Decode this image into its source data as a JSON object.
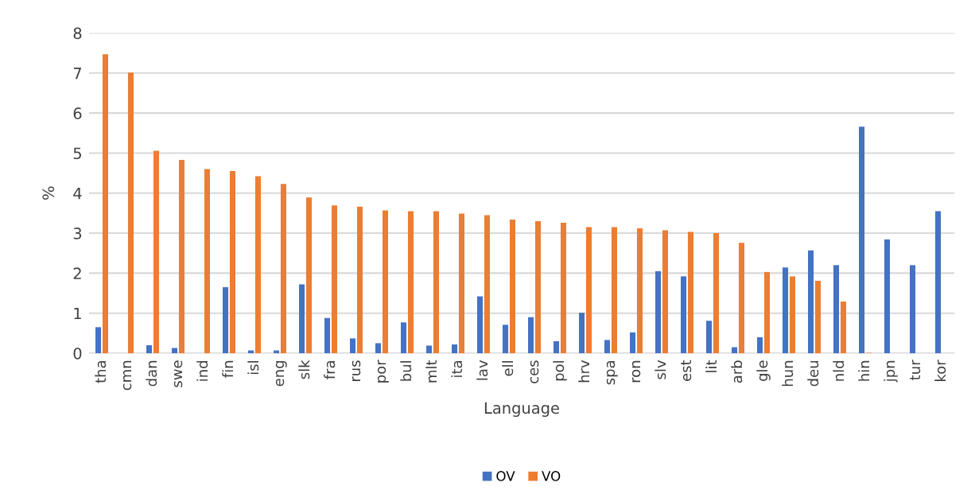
{
  "chart_data": {
    "type": "bar",
    "xlabel": "Language",
    "ylabel": "%",
    "categories": [
      "tha",
      "cmn",
      "dan",
      "swe",
      "ind",
      "fin",
      "isl",
      "eng",
      "slk",
      "fra",
      "rus",
      "por",
      "bul",
      "mlt",
      "ita",
      "lav",
      "ell",
      "ces",
      "pol",
      "hrv",
      "spa",
      "ron",
      "slv",
      "est",
      "lit",
      "arb",
      "gle",
      "hun",
      "deu",
      "nld",
      "hin",
      "jpn",
      "tur",
      "kor"
    ],
    "series": [
      {
        "name": "OV",
        "color": "#4472c4",
        "values": [
          0.65,
          0,
          0.2,
          0.13,
          0,
          1.65,
          0.07,
          0.07,
          1.72,
          0.88,
          0.37,
          0.25,
          0.77,
          0.19,
          0.22,
          1.42,
          0.71,
          0.9,
          0.3,
          1.01,
          0.33,
          0.52,
          2.05,
          1.92,
          0.81,
          0.15,
          0.4,
          2.14,
          2.57,
          2.2,
          5.66,
          2.84,
          2.2,
          3.55
        ]
      },
      {
        "name": "VO",
        "color": "#ed7d31",
        "values": [
          7.47,
          7.01,
          5.06,
          4.83,
          4.6,
          4.55,
          4.42,
          4.23,
          3.89,
          3.69,
          3.66,
          3.57,
          3.55,
          3.55,
          3.49,
          3.45,
          3.34,
          3.3,
          3.26,
          3.15,
          3.15,
          3.12,
          3.07,
          3.03,
          3.0,
          2.76,
          2.03,
          1.92,
          1.81,
          1.29,
          0.01,
          0,
          0,
          0
        ]
      }
    ],
    "ylim": [
      0,
      8
    ],
    "yticks": [
      0,
      1,
      2,
      3,
      4,
      5,
      6,
      7,
      8
    ],
    "grid": "y",
    "legend": "bottom"
  }
}
